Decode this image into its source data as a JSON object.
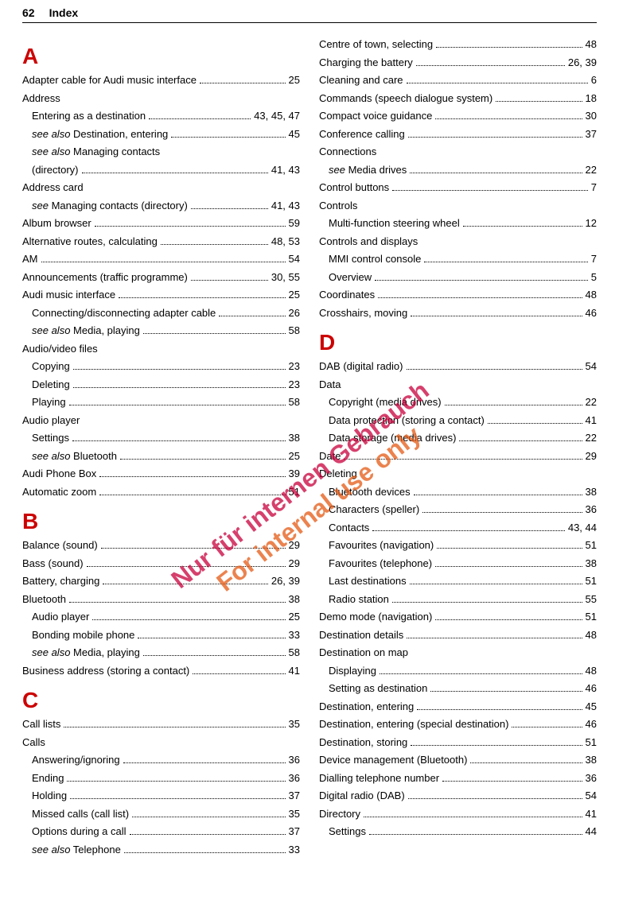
{
  "header": {
    "page_num": "62",
    "title": "Index"
  },
  "watermark": {
    "line1": "Nur für internen Gebrauch",
    "line2": "For internal use only"
  },
  "left": {
    "sections": [
      {
        "heading": "A",
        "rows": [
          {
            "label": "Adapter cable for Audi music interface",
            "page": "25"
          },
          {
            "label": "Address",
            "page": "",
            "noline": true
          },
          {
            "label": "Entering as a destination",
            "page": "43, 45, 47",
            "sub": true
          },
          {
            "label": "<span class='see-also'>see also</span> Destination, entering",
            "page": "45",
            "sub": true
          },
          {
            "label": "<span class='see-also'>see also</span> Managing contacts",
            "page": "",
            "sub": true,
            "noline": true
          },
          {
            "label": "(directory)",
            "page": "41, 43",
            "sub": true
          },
          {
            "label": "Address card",
            "page": "",
            "noline": true
          },
          {
            "label": "<span class='see-also'>see</span> Managing contacts (directory)",
            "page": "41, 43",
            "sub": true
          },
          {
            "label": "Album browser",
            "page": "59"
          },
          {
            "label": "Alternative routes, calculating",
            "page": "48, 53"
          },
          {
            "label": "AM",
            "page": "54"
          },
          {
            "label": "Announcements (traffic programme)",
            "page": "30, 55"
          },
          {
            "label": "Audi music interface",
            "page": "25"
          },
          {
            "label": "Connecting/disconnecting adapter cable",
            "page": "26",
            "sub": true
          },
          {
            "label": "<span class='see-also'>see also</span> Media, playing",
            "page": "58",
            "sub": true
          },
          {
            "label": "Audio/video files",
            "page": "",
            "noline": true
          },
          {
            "label": "Copying",
            "page": "23",
            "sub": true
          },
          {
            "label": "Deleting",
            "page": "23",
            "sub": true
          },
          {
            "label": "Playing",
            "page": "58",
            "sub": true
          },
          {
            "label": "Audio player",
            "page": "",
            "noline": true
          },
          {
            "label": "Settings",
            "page": "38",
            "sub": true
          },
          {
            "label": "<span class='see-also'>see also</span> Bluetooth",
            "page": "25",
            "sub": true
          },
          {
            "label": "Audi Phone Box",
            "page": "39"
          },
          {
            "label": "Automatic zoom",
            "page": "51"
          }
        ]
      },
      {
        "heading": "B",
        "rows": [
          {
            "label": "Balance (sound)",
            "page": "29"
          },
          {
            "label": "Bass (sound)",
            "page": "29"
          },
          {
            "label": "Battery, charging",
            "page": "26, 39"
          },
          {
            "label": "Bluetooth",
            "page": "38"
          },
          {
            "label": "Audio player",
            "page": "25",
            "sub": true
          },
          {
            "label": "Bonding mobile phone",
            "page": "33",
            "sub": true
          },
          {
            "label": "<span class='see-also'>see also</span> Media, playing",
            "page": "58",
            "sub": true
          },
          {
            "label": "Business address (storing a contact)",
            "page": "41"
          }
        ]
      },
      {
        "heading": "C",
        "rows": [
          {
            "label": "Call lists",
            "page": "35"
          },
          {
            "label": "Calls",
            "page": "",
            "noline": true
          },
          {
            "label": "Answering/ignoring",
            "page": "36",
            "sub": true
          },
          {
            "label": "Ending",
            "page": "36",
            "sub": true
          },
          {
            "label": "Holding",
            "page": "37",
            "sub": true
          },
          {
            "label": "Missed calls (call list)",
            "page": "35",
            "sub": true
          },
          {
            "label": "Options during a call",
            "page": "37",
            "sub": true
          },
          {
            "label": "<span class='see-also'>see also</span> Telephone",
            "page": "33",
            "sub": true
          }
        ]
      }
    ]
  },
  "right": {
    "pre_rows": [
      {
        "label": "Centre of town, selecting",
        "page": "48"
      },
      {
        "label": "Charging the battery",
        "page": "26, 39"
      },
      {
        "label": "Cleaning and care",
        "page": "6"
      },
      {
        "label": "Commands (speech dialogue system)",
        "page": "18"
      },
      {
        "label": "Compact voice guidance",
        "page": "30"
      },
      {
        "label": "Conference calling",
        "page": "37"
      },
      {
        "label": "Connections",
        "page": "",
        "noline": true
      },
      {
        "label": "<span class='see-also'>see</span> Media drives",
        "page": "22",
        "sub": true
      },
      {
        "label": "Control buttons",
        "page": "7"
      },
      {
        "label": "Controls",
        "page": "",
        "noline": true
      },
      {
        "label": "Multi-function steering wheel",
        "page": "12",
        "sub": true
      },
      {
        "label": "Controls and displays",
        "page": "",
        "noline": true
      },
      {
        "label": "MMI control console",
        "page": "7",
        "sub": true
      },
      {
        "label": "Overview",
        "page": "5",
        "sub": true
      },
      {
        "label": "Coordinates",
        "page": "48"
      },
      {
        "label": "Crosshairs, moving",
        "page": "46"
      }
    ],
    "sections": [
      {
        "heading": "D",
        "rows": [
          {
            "label": "DAB (digital radio)",
            "page": "54"
          },
          {
            "label": "Data",
            "page": "",
            "noline": true
          },
          {
            "label": "Copyright (media drives)",
            "page": "22",
            "sub": true
          },
          {
            "label": "Data protection (storing a contact)",
            "page": "41",
            "sub": true
          },
          {
            "label": "Data storage (media drives)",
            "page": "22",
            "sub": true
          },
          {
            "label": "Date",
            "page": "29"
          },
          {
            "label": "Deleting",
            "page": "",
            "noline": true
          },
          {
            "label": "Bluetooth devices",
            "page": "38",
            "sub": true
          },
          {
            "label": "Characters (speller)",
            "page": "36",
            "sub": true
          },
          {
            "label": "Contacts",
            "page": "43, 44",
            "sub": true
          },
          {
            "label": "Favourites (navigation)",
            "page": "51",
            "sub": true
          },
          {
            "label": "Favourites (telephone)",
            "page": "38",
            "sub": true
          },
          {
            "label": "Last destinations",
            "page": "51",
            "sub": true
          },
          {
            "label": "Radio station",
            "page": "55",
            "sub": true
          },
          {
            "label": "Demo mode (navigation)",
            "page": "51"
          },
          {
            "label": "Destination details",
            "page": "48"
          },
          {
            "label": "Destination on map",
            "page": "",
            "noline": true
          },
          {
            "label": "Displaying",
            "page": "48",
            "sub": true
          },
          {
            "label": "Setting as destination",
            "page": "46",
            "sub": true
          },
          {
            "label": "Destination, entering",
            "page": "45"
          },
          {
            "label": "Destination, entering (special destination)",
            "page": "46"
          },
          {
            "label": "Destination, storing",
            "page": "51"
          },
          {
            "label": "Device management (Bluetooth)",
            "page": "38"
          },
          {
            "label": "Dialling telephone number",
            "page": "36"
          },
          {
            "label": "Digital radio (DAB)",
            "page": "54"
          },
          {
            "label": "Directory",
            "page": "41"
          },
          {
            "label": "Settings",
            "page": "44",
            "sub": true
          }
        ]
      }
    ]
  }
}
